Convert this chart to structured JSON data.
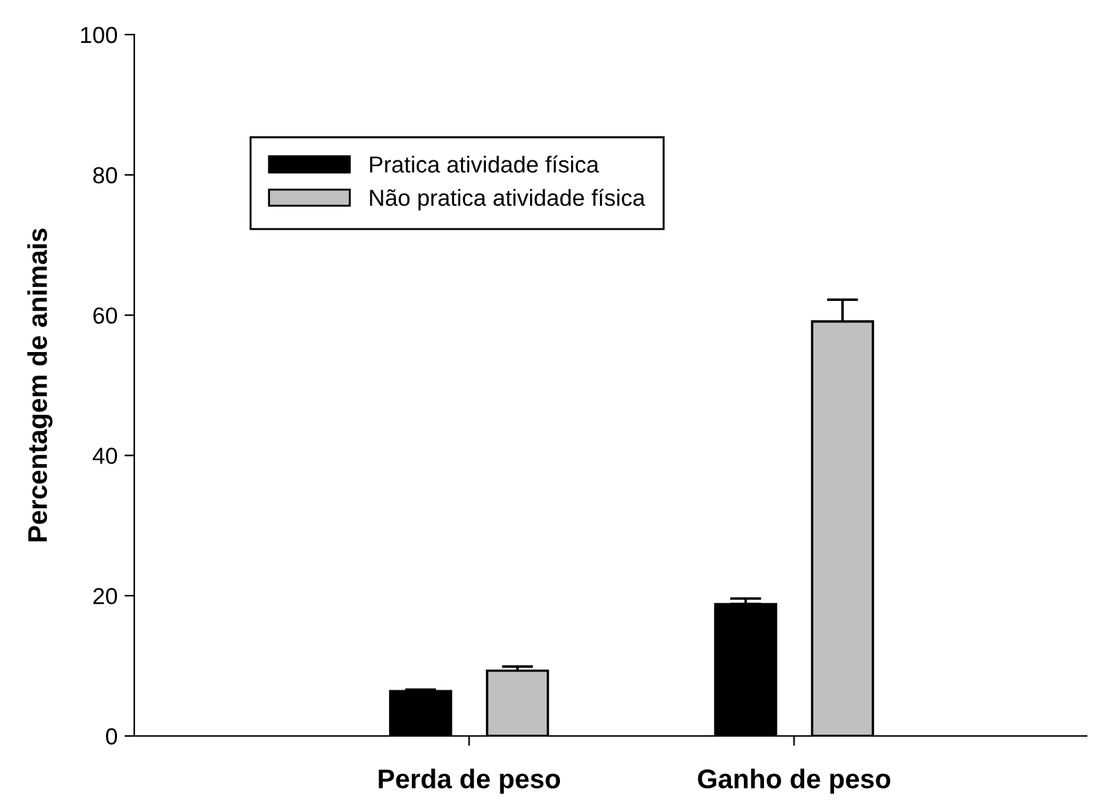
{
  "chart_data": {
    "type": "bar",
    "ylabel": "Percentagem de animais",
    "categories": [
      "Perda de peso",
      "Ganho de peso"
    ],
    "series": [
      {
        "name": "Pratica atividade física",
        "color": "#000000",
        "values": [
          6.4,
          18.8
        ],
        "errors": [
          [
            6.4,
            6.6
          ],
          [
            18.8,
            19.6
          ]
        ]
      },
      {
        "name": "Não pratica atividade física",
        "color": "#c0c0c0",
        "values": [
          9.3,
          59.1
        ],
        "errors": [
          [
            9.3,
            9.9
          ],
          [
            59.1,
            62.2
          ]
        ]
      }
    ],
    "ylim": [
      0,
      100
    ],
    "yticks": [
      0,
      20,
      40,
      60,
      80,
      100
    ],
    "grid": false,
    "legend": "top left"
  }
}
